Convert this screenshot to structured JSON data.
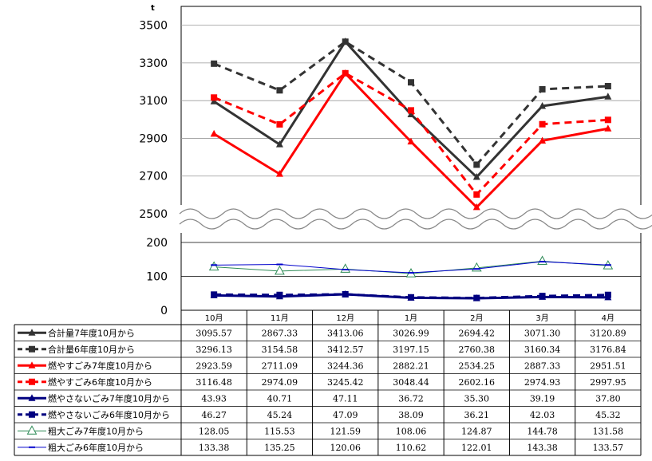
{
  "chart_data": {
    "type": "line",
    "unit": "t",
    "categories": [
      "10月",
      "11月",
      "12月",
      "1月",
      "2月",
      "3月",
      "4月"
    ],
    "upper_axis": {
      "range": [
        2500,
        3600
      ],
      "ticks": [
        "2500",
        "2700",
        "2900",
        "3100",
        "3300",
        "3500"
      ]
    },
    "lower_axis": {
      "range": [
        0,
        200
      ],
      "ticks": [
        "0",
        "100",
        "200"
      ]
    },
    "axis_break": true,
    "grid": true,
    "legend": "data-table",
    "series": [
      {
        "name": "合計量7年度10月から",
        "axis": "upper",
        "color": "#333333",
        "dash": false,
        "marker": "triangle",
        "values": [
          3095.57,
          2867.33,
          3413.06,
          3026.99,
          2694.42,
          3071.3,
          3120.89
        ],
        "labels": [
          "3095.57",
          "2867.33",
          "3413.06",
          "3026.99",
          "2694.42",
          "3071.30",
          "3120.89"
        ]
      },
      {
        "name": "合計量6年度10月から",
        "axis": "upper",
        "color": "#333333",
        "dash": true,
        "marker": "square",
        "values": [
          3296.13,
          3154.58,
          3412.57,
          3197.15,
          2760.38,
          3160.34,
          3176.84
        ],
        "labels": [
          "3296.13",
          "3154.58",
          "3412.57",
          "3197.15",
          "2760.38",
          "3160.34",
          "3176.84"
        ]
      },
      {
        "name": "燃やすごみ7年度10月から",
        "axis": "upper",
        "color": "#ff0000",
        "dash": false,
        "marker": "triangle",
        "values": [
          2923.59,
          2711.09,
          3244.36,
          2882.21,
          2534.25,
          2887.33,
          2951.51
        ],
        "labels": [
          "2923.59",
          "2711.09",
          "3244.36",
          "2882.21",
          "2534.25",
          "2887.33",
          "2951.51"
        ]
      },
      {
        "name": "燃やすごみ6年度10月から",
        "axis": "upper",
        "color": "#ff0000",
        "dash": true,
        "marker": "square",
        "values": [
          3116.48,
          2974.09,
          3245.42,
          3048.44,
          2602.16,
          2974.93,
          2997.95
        ],
        "labels": [
          "3116.48",
          "2974.09",
          "3245.42",
          "3048.44",
          "2602.16",
          "2974.93",
          "2997.95"
        ]
      },
      {
        "name": "燃やさないごみ7年度10月から",
        "axis": "lower",
        "color": "#000080",
        "dash": false,
        "marker": "triangle",
        "values": [
          43.93,
          40.71,
          47.11,
          36.72,
          35.3,
          39.19,
          37.8
        ],
        "labels": [
          "43.93",
          "40.71",
          "47.11",
          "36.72",
          "35.30",
          "39.19",
          "37.80"
        ]
      },
      {
        "name": "燃やさないごみ6年度10月から",
        "axis": "lower",
        "color": "#000080",
        "dash": true,
        "marker": "square",
        "values": [
          46.27,
          45.24,
          47.09,
          38.09,
          36.21,
          42.03,
          45.32
        ],
        "labels": [
          "46.27",
          "45.24",
          "47.09",
          "38.09",
          "36.21",
          "42.03",
          "45.32"
        ]
      },
      {
        "name": "粗大ごみ7年度10月から",
        "axis": "lower",
        "color": "#2e8b57",
        "dash": false,
        "marker": "hollow-triangle",
        "values": [
          128.05,
          115.53,
          121.59,
          108.06,
          124.87,
          144.78,
          131.58
        ],
        "labels": [
          "128.05",
          "115.53",
          "121.59",
          "108.06",
          "124.87",
          "144.78",
          "131.58"
        ]
      },
      {
        "name": "粗大ごみ6年度10月から",
        "axis": "lower",
        "color": "#0000cc",
        "dash": false,
        "marker": "dash",
        "values": [
          133.38,
          135.25,
          120.06,
          110.62,
          122.01,
          143.38,
          133.57
        ],
        "labels": [
          "133.38",
          "135.25",
          "120.06",
          "110.62",
          "122.01",
          "143.38",
          "133.57"
        ]
      }
    ]
  }
}
